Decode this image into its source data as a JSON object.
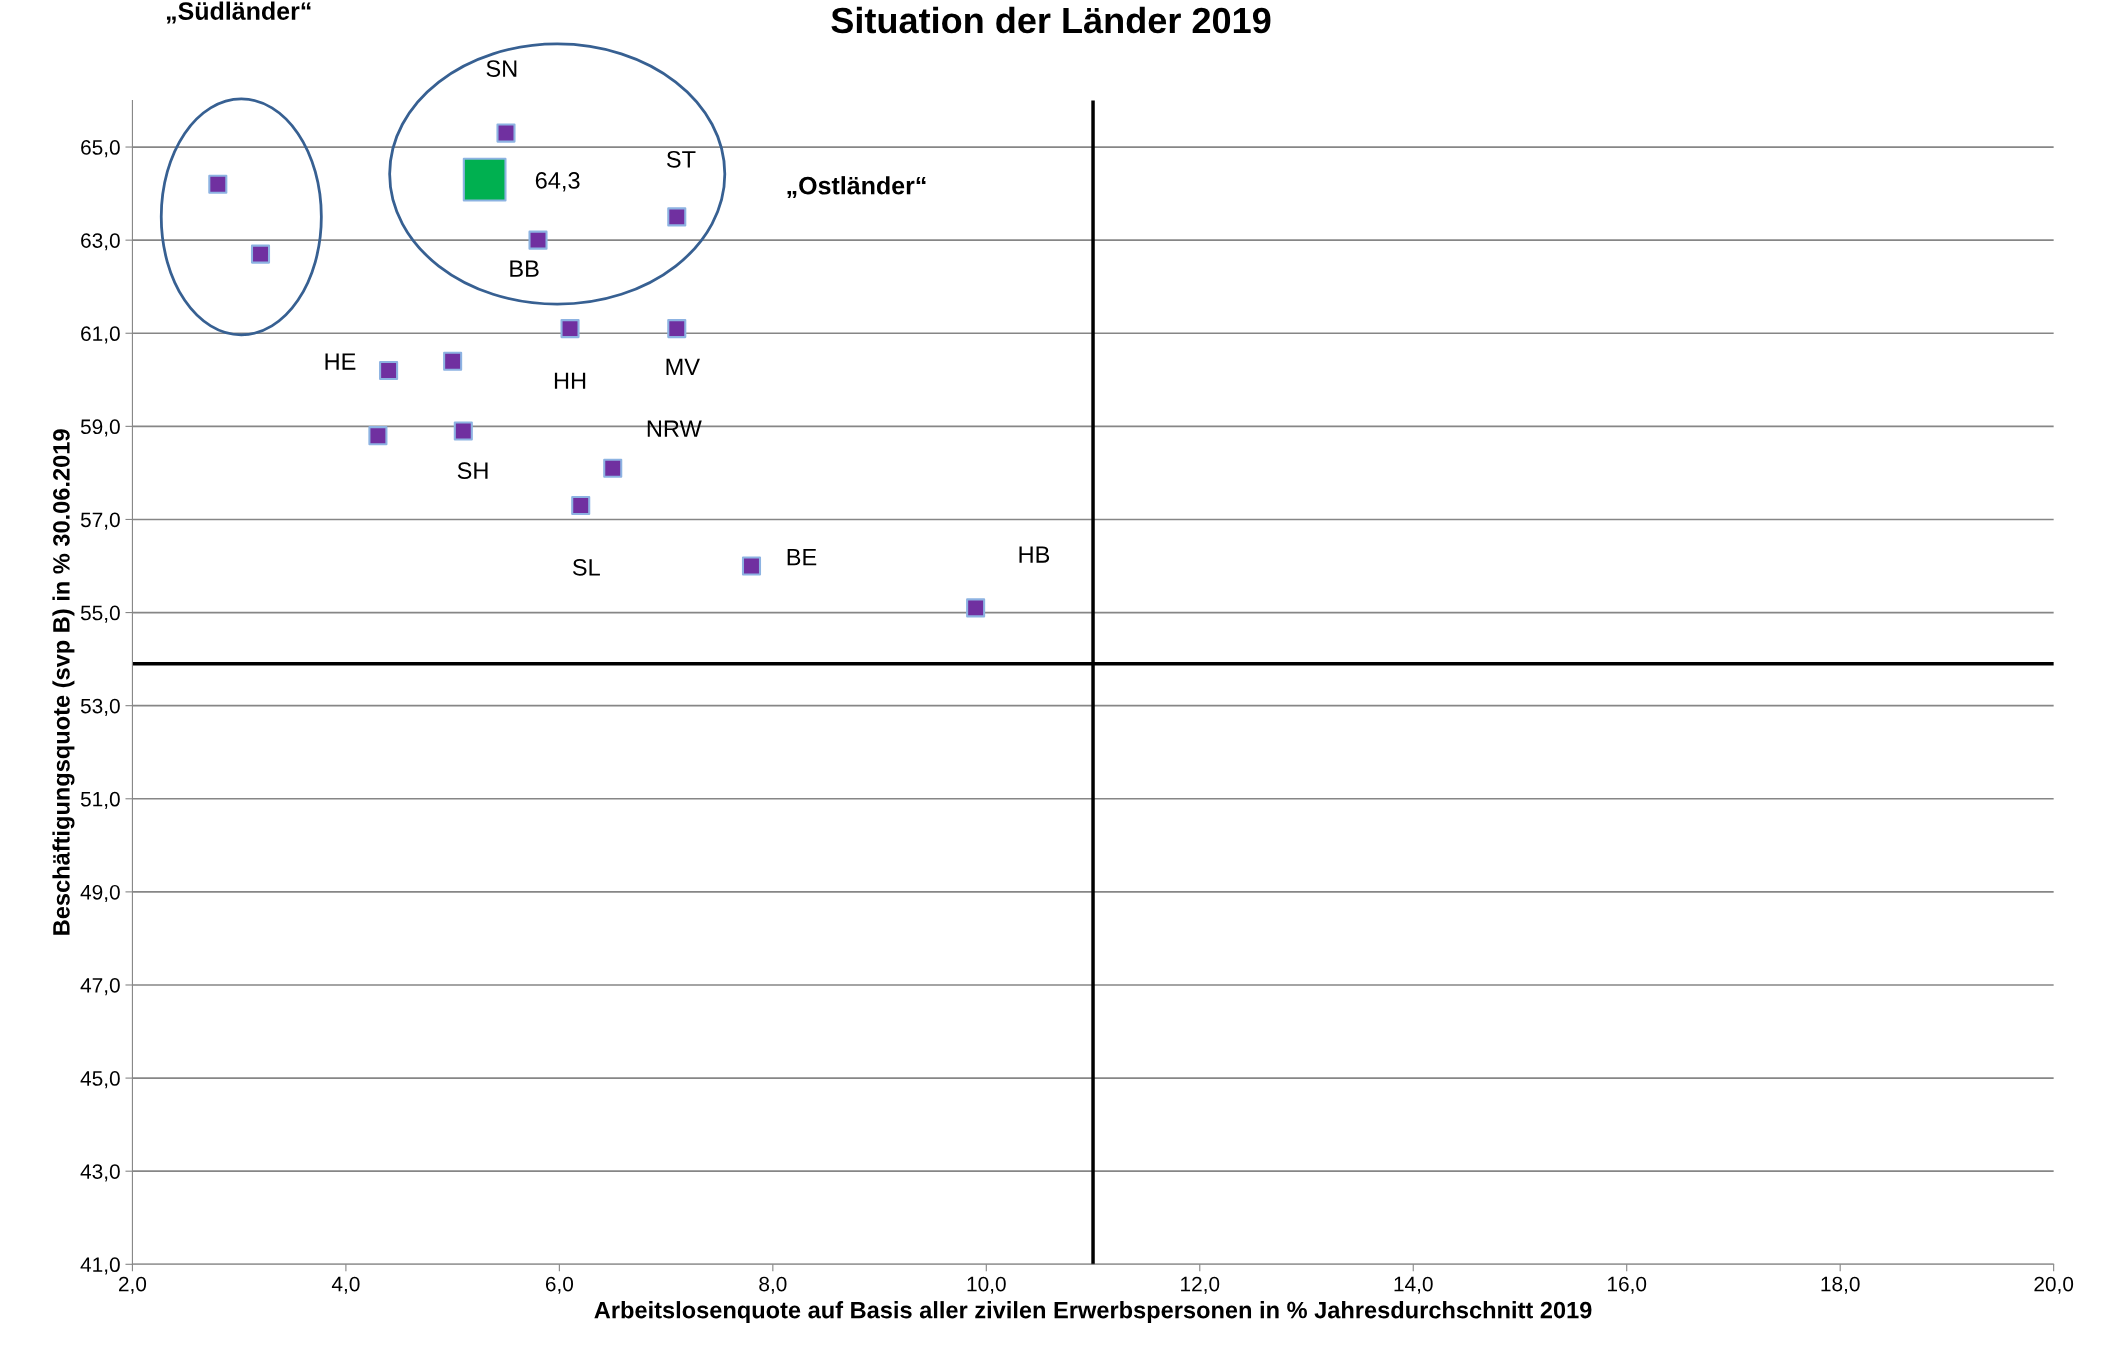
{
  "chart_data": {
    "type": "scatter",
    "title": "Situation der Länder 2019",
    "xlabel": "Arbeitslosenquote auf Basis aller zivilen Erwerbspersonen in % Jahresdurchschnitt 2019",
    "ylabel": "Beschäftigungsquote (svp B) in % 30.06.2019",
    "series": [
      {
        "color": "#7030a0",
        "x": [
          2.8,
          3.2,
          5.5,
          7.1,
          5.8,
          6.1,
          7.1,
          4.4,
          5.0,
          4.3,
          5.1,
          6.5,
          6.2,
          7.8,
          9.9
        ],
        "values": [
          64.2,
          62.7,
          65.3,
          63.5,
          63.0,
          61.1,
          61.1,
          60.2,
          60.4,
          58.8,
          58.9,
          58.1,
          57.3,
          56.0,
          55.1
        ]
      },
      {
        "color": "#00b050",
        "x": [
          5.3
        ],
        "values": [
          64.3
        ],
        "value_labels": [
          "64,3"
        ]
      }
    ],
    "annotations": [
      "„Südländer“",
      "„Ostländer“",
      {
        "text": "SN",
        "x": 5.5,
        "y": 65.3
      },
      {
        "text": "ST",
        "x": 7.1,
        "y": 63.5
      },
      {
        "text": "BB",
        "x": 5.8,
        "y": 63.0
      },
      {
        "text": "HH",
        "x": 6.1,
        "y": 61.1
      },
      {
        "text": "MV",
        "x": 7.1,
        "y": 61.1
      },
      {
        "text": "HE",
        "x": 4.4,
        "y": 60.2
      },
      {
        "text": "SH",
        "x": 5.1,
        "y": 58.9
      },
      {
        "text": "NRW",
        "x": 6.5,
        "y": 58.1
      },
      {
        "text": "SL",
        "x": 6.2,
        "y": 57.3
      },
      {
        "text": "BE",
        "x": 7.8,
        "y": 56.0
      },
      {
        "text": "HB",
        "x": 9.9,
        "y": 55.1
      }
    ],
    "ref_lines": [
      {
        "axis": "y",
        "value": 53.9,
        "color": "#000000"
      },
      {
        "axis": "x",
        "value": 11.0,
        "color": "#000000"
      }
    ],
    "xlim": [
      2,
      20
    ],
    "ylim": [
      41,
      66
    ],
    "xticks": [
      {
        "value": 2,
        "label": "2,0"
      },
      {
        "value": 4,
        "label": "4,0"
      },
      {
        "value": 6,
        "label": "6,0"
      },
      {
        "value": 8,
        "label": "8,0"
      },
      {
        "value": 10,
        "label": "10,0"
      },
      {
        "value": 12,
        "label": "12,0"
      },
      {
        "value": 14,
        "label": "14,0"
      },
      {
        "value": 16,
        "label": "16,0"
      },
      {
        "value": 18,
        "label": "18,0"
      },
      {
        "value": 20,
        "label": "20,0"
      }
    ],
    "yticks": [
      {
        "value": 41,
        "label": "41,0"
      },
      {
        "value": 43,
        "label": "43,0"
      },
      {
        "value": 45,
        "label": "45,0"
      },
      {
        "value": 47,
        "label": "47,0"
      },
      {
        "value": 49,
        "label": "49,0"
      },
      {
        "value": 51,
        "label": "51,0"
      },
      {
        "value": 53,
        "label": "53,0"
      },
      {
        "value": 55,
        "label": "55,0"
      },
      {
        "value": 57,
        "label": "57,0"
      },
      {
        "value": 59,
        "label": "59,0"
      },
      {
        "value": 61,
        "label": "61,0"
      },
      {
        "value": 63,
        "label": "63,0"
      },
      {
        "value": 65,
        "label": "65,0"
      }
    ],
    "grid": "y",
    "legend": false,
    "marker": "square"
  }
}
